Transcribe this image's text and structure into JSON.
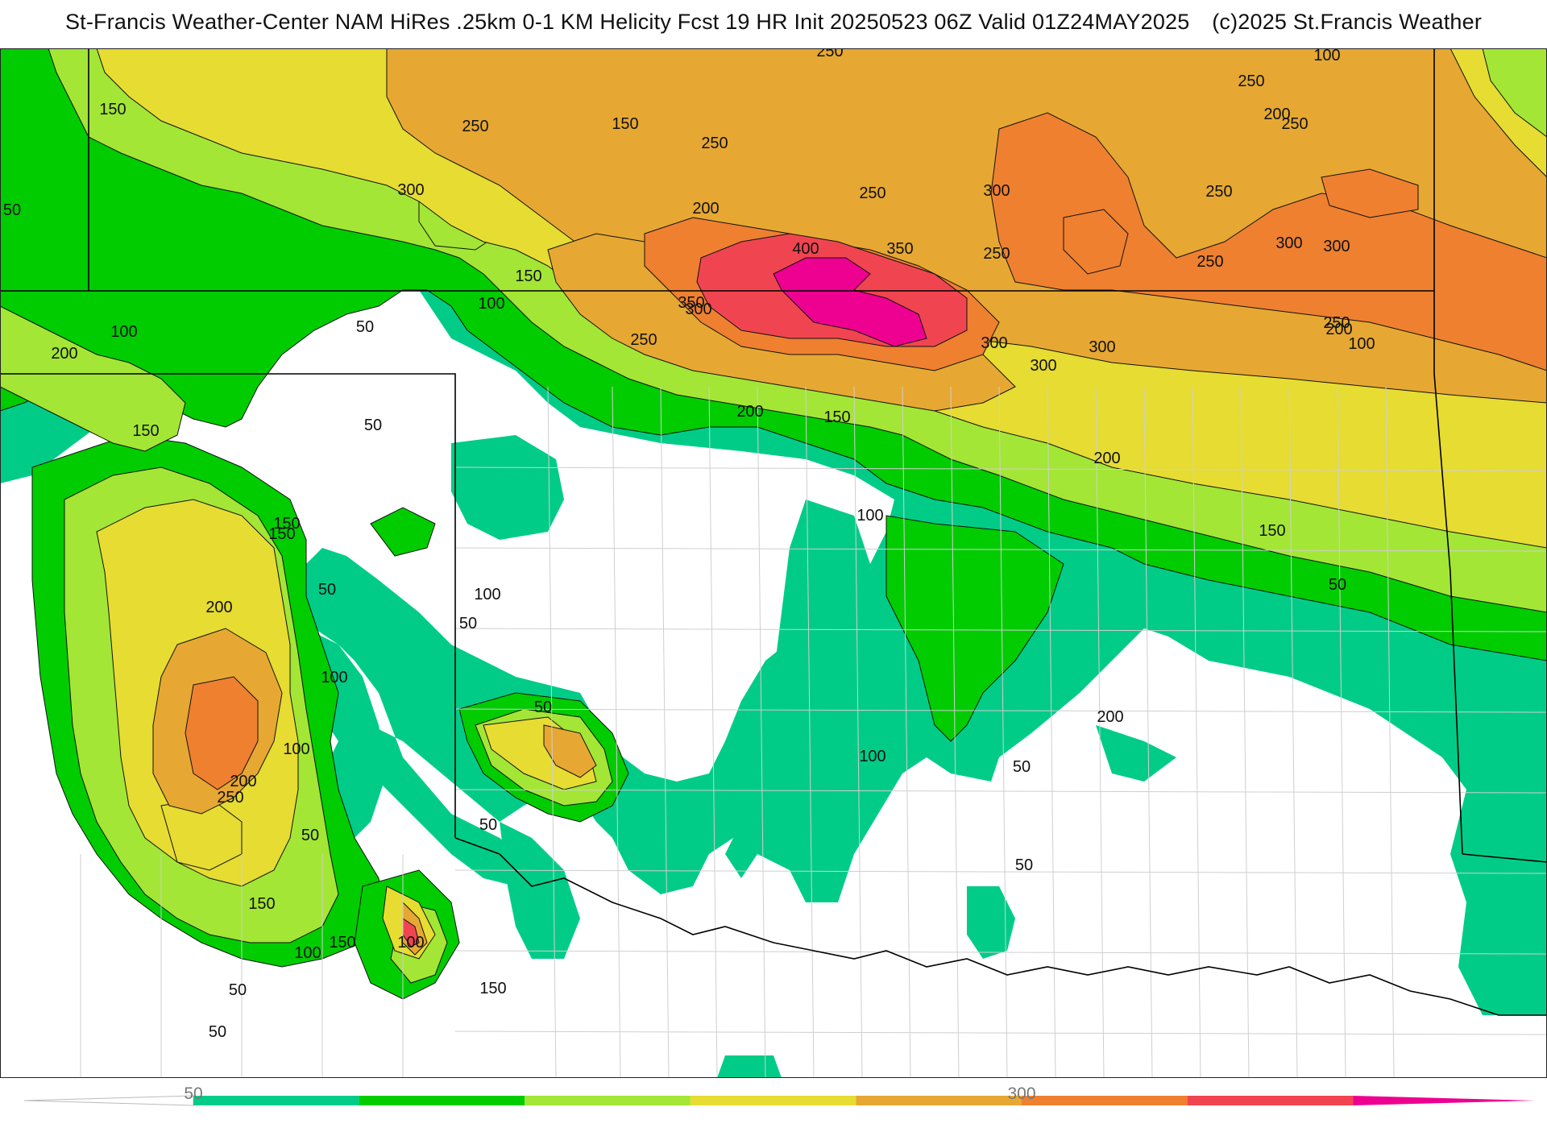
{
  "header": {
    "left": "St-Francis Weather-Center NAM HiRes .25km 0-1 KM Helicity Fcst 19 HR Init 20250523 06Z  Valid 01Z24MAY2025",
    "right": "(c)2025 St.Francis Weather"
  },
  "legend": {
    "ticks": [
      "50",
      "300"
    ],
    "colors": [
      "#00cc88",
      "#00cc00",
      "#a3e635",
      "#e6dc32",
      "#e6a832",
      "#ee8030",
      "#f04550",
      "#ee0090"
    ]
  },
  "map": {
    "contour_labels": [
      "150",
      "100",
      "250",
      "150",
      "200",
      "250",
      "250",
      "250",
      "300",
      "250",
      "250",
      "300",
      "200",
      "250",
      "300",
      "50",
      "400",
      "350",
      "150",
      "300",
      "300",
      "100",
      "350",
      "250",
      "250",
      "300",
      "300",
      "200",
      "100",
      "50",
      "250",
      "300",
      "250",
      "200",
      "100",
      "200",
      "150",
      "50",
      "200",
      "150",
      "150",
      "100",
      "50",
      "50",
      "150",
      "150",
      "100",
      "50",
      "200",
      "100",
      "100",
      "200",
      "50",
      "50",
      "200",
      "100",
      "50",
      "150",
      "250",
      "50",
      "150",
      "50",
      "100",
      "50",
      "150",
      "100",
      "50"
    ],
    "colors": {
      "c50": "#00cc88",
      "c100": "#00cc00",
      "c150": "#a3e635",
      "c200": "#e6dc32",
      "c250": "#e6a832",
      "c300": "#ee8030",
      "c350": "#f04550",
      "c400": "#ee0090"
    }
  }
}
